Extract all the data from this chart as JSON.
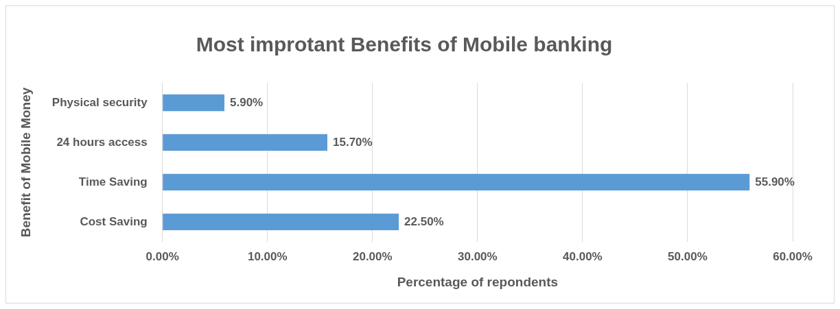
{
  "chart_data": {
    "type": "bar",
    "orientation": "horizontal",
    "title": "Most improtant Benefits of Mobile banking",
    "xlabel": "Percentage of repondents",
    "ylabel": "Benefit of Mobile Money",
    "categories": [
      "Physical security",
      "24 hours access",
      "Time Saving",
      "Cost Saving"
    ],
    "values": [
      5.9,
      15.7,
      55.9,
      22.5
    ],
    "value_labels": [
      "5.90%",
      "15.70%",
      "55.90%",
      "22.50%"
    ],
    "color": "#5b9bd5",
    "xlim": [
      0,
      60
    ],
    "xticks": [
      {
        "value": 0,
        "label": "0.00%"
      },
      {
        "value": 10,
        "label": "10.00%"
      },
      {
        "value": 20,
        "label": "20.00%"
      },
      {
        "value": 30,
        "label": "30.00%"
      },
      {
        "value": 40,
        "label": "40.00%"
      },
      {
        "value": 50,
        "label": "50.00%"
      },
      {
        "value": 60,
        "label": "60.00%"
      }
    ],
    "grid": "x",
    "legend": false
  }
}
